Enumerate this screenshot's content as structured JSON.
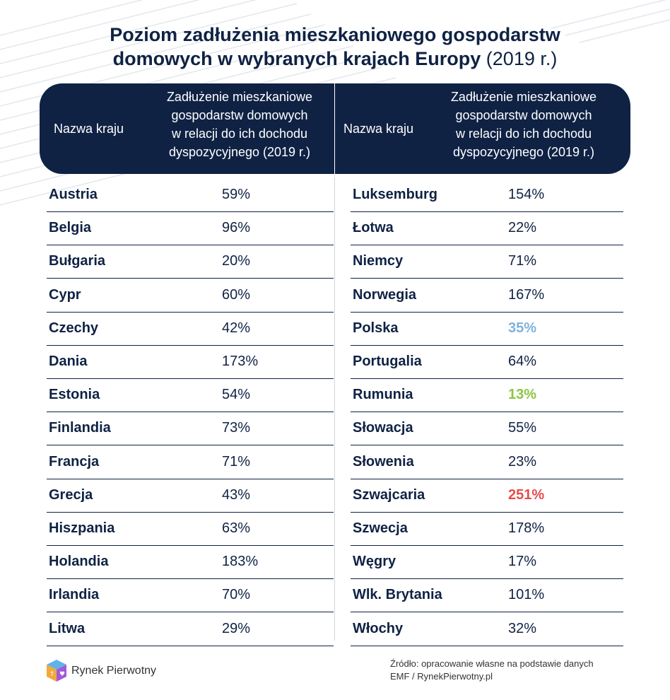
{
  "title": {
    "line1": "Poziom zadłużenia mieszkaniowego gospodarstw",
    "line2_bold": "domowych w wybranych krajach Europy",
    "line2_year": "(2019 r.)"
  },
  "header": {
    "country_label": "Nazwa kraju",
    "metric_label_lines": [
      "Zadłużenie mieszkaniowe",
      "gospodarstw domowych",
      "w relacji do ich dochodu",
      "dyspozycyjnego (2019 r.)"
    ]
  },
  "colors": {
    "navy": "#0f2244",
    "highlight_blue": "#7fb3db",
    "highlight_green": "#8cc63f",
    "highlight_red": "#e94b4b"
  },
  "chart_data": {
    "type": "table",
    "title": "Poziom zadłużenia mieszkaniowego gospodarstw domowych w wybranych krajach Europy (2019 r.)",
    "columns": [
      "Nazwa kraju",
      "Zadłużenie mieszkaniowe gospodarstw domowych w relacji do ich dochodu dyspozycyjnego (2019 r.)"
    ],
    "left_rows": [
      {
        "country": "Austria",
        "value": "59%"
      },
      {
        "country": "Belgia",
        "value": "96%"
      },
      {
        "country": "Bułgaria",
        "value": "20%"
      },
      {
        "country": "Cypr",
        "value": "60%"
      },
      {
        "country": "Czechy",
        "value": "42%"
      },
      {
        "country": "Dania",
        "value": "173%"
      },
      {
        "country": "Estonia",
        "value": "54%"
      },
      {
        "country": "Finlandia",
        "value": "73%"
      },
      {
        "country": "Francja",
        "value": "71%"
      },
      {
        "country": "Grecja",
        "value": "43%"
      },
      {
        "country": "Hiszpania",
        "value": "63%"
      },
      {
        "country": "Holandia",
        "value": "183%"
      },
      {
        "country": "Irlandia",
        "value": "70%"
      },
      {
        "country": "Litwa",
        "value": "29%"
      }
    ],
    "right_rows": [
      {
        "country": "Luksemburg",
        "value": "154%"
      },
      {
        "country": "Łotwa",
        "value": "22%"
      },
      {
        "country": "Niemcy",
        "value": "71%"
      },
      {
        "country": "Norwegia",
        "value": "167%"
      },
      {
        "country": "Polska",
        "value": "35%",
        "highlight": "#7fb3db"
      },
      {
        "country": "Portugalia",
        "value": "64%"
      },
      {
        "country": "Rumunia",
        "value": "13%",
        "highlight": "#8cc63f"
      },
      {
        "country": "Słowacja",
        "value": "55%"
      },
      {
        "country": "Słowenia",
        "value": "23%"
      },
      {
        "country": "Szwajcaria",
        "value": "251%",
        "highlight": "#e94b4b"
      },
      {
        "country": "Szwecja",
        "value": "178%"
      },
      {
        "country": "Węgry",
        "value": "17%"
      },
      {
        "country": "Wlk. Brytania",
        "value": "101%"
      },
      {
        "country": "Włochy",
        "value": "32%"
      }
    ]
  },
  "footer": {
    "brand": "Rynek Pierwotny",
    "source_line1": "Źródło: opracowanie własne na podstawie danych",
    "source_line2": "EMF / RynekPierwotny.pl"
  }
}
